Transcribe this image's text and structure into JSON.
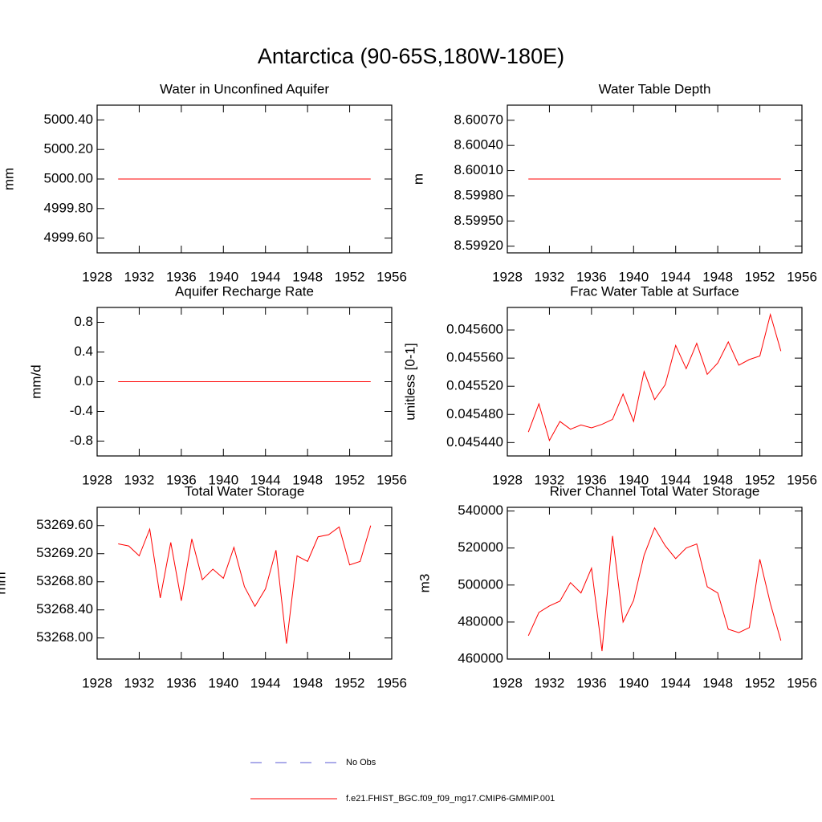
{
  "title": "Antarctica (90-65S,180W-180E)",
  "legend": [
    {
      "name": "No Obs",
      "color": "#5a5ad6",
      "dash": true
    },
    {
      "name": "f.e21.FHIST_BGC.f09_f09_mg17.CMIP6-GMMIP.001",
      "color": "#ff0000",
      "dash": false
    }
  ],
  "chart_data": [
    {
      "type": "line",
      "title": "Water in Unconfined Aquifer",
      "ylabel": "mm",
      "x": [
        1930,
        1931,
        1932,
        1933,
        1934,
        1935,
        1936,
        1937,
        1938,
        1939,
        1940,
        1941,
        1942,
        1943,
        1944,
        1945,
        1946,
        1947,
        1948,
        1949,
        1950,
        1951,
        1952,
        1953,
        1954
      ],
      "series": [
        {
          "color": "#ff0000",
          "values": [
            5000,
            5000,
            5000,
            5000,
            5000,
            5000,
            5000,
            5000,
            5000,
            5000,
            5000,
            5000,
            5000,
            5000,
            5000,
            5000,
            5000,
            5000,
            5000,
            5000,
            5000,
            5000,
            5000,
            5000,
            5000
          ]
        }
      ],
      "xlim": [
        1928,
        1956
      ],
      "xticks": [
        1928,
        1932,
        1936,
        1940,
        1944,
        1948,
        1952,
        1956
      ],
      "ylim": [
        4999.5,
        5000.5
      ],
      "yticks": [
        {
          "value": 4999.6,
          "label": "4999.60"
        },
        {
          "value": 4999.8,
          "label": "4999.80"
        },
        {
          "value": 5000,
          "label": "5000.00"
        },
        {
          "value": 5000.2,
          "label": "5000.20"
        },
        {
          "value": 5000.4,
          "label": "5000.40"
        }
      ]
    },
    {
      "type": "line",
      "title": "Water Table Depth",
      "ylabel": "m",
      "x": [
        1930,
        1931,
        1932,
        1933,
        1934,
        1935,
        1936,
        1937,
        1938,
        1939,
        1940,
        1941,
        1942,
        1943,
        1944,
        1945,
        1946,
        1947,
        1948,
        1949,
        1950,
        1951,
        1952,
        1953,
        1954
      ],
      "series": [
        {
          "color": "#ff0000",
          "values": [
            8.6,
            8.6,
            8.6,
            8.6,
            8.6,
            8.6,
            8.6,
            8.6,
            8.6,
            8.6,
            8.6,
            8.6,
            8.6,
            8.6,
            8.6,
            8.6,
            8.6,
            8.6,
            8.6,
            8.6,
            8.6,
            8.6,
            8.6,
            8.6,
            8.6
          ]
        }
      ],
      "xlim": [
        1928,
        1956
      ],
      "xticks": [
        1928,
        1932,
        1936,
        1940,
        1944,
        1948,
        1952,
        1956
      ],
      "ylim": [
        8.59912,
        8.60088
      ],
      "yticks": [
        {
          "value": 8.5992,
          "label": "8.59920"
        },
        {
          "value": 8.5995,
          "label": "8.59950"
        },
        {
          "value": 8.5998,
          "label": "8.59980"
        },
        {
          "value": 8.6001,
          "label": "8.60010"
        },
        {
          "value": 8.6004,
          "label": "8.60040"
        },
        {
          "value": 8.6007,
          "label": "8.60070"
        }
      ]
    },
    {
      "type": "line",
      "title": "Aquifer Recharge Rate",
      "ylabel": "mm/d",
      "x": [
        1930,
        1931,
        1932,
        1933,
        1934,
        1935,
        1936,
        1937,
        1938,
        1939,
        1940,
        1941,
        1942,
        1943,
        1944,
        1945,
        1946,
        1947,
        1948,
        1949,
        1950,
        1951,
        1952,
        1953,
        1954
      ],
      "series": [
        {
          "color": "#ff0000",
          "values": [
            0,
            0,
            0,
            0,
            0,
            0,
            0,
            0,
            0,
            0,
            0,
            0,
            0,
            0,
            0,
            0,
            0,
            0,
            0,
            0,
            0,
            0,
            0,
            0,
            0
          ]
        }
      ],
      "xlim": [
        1928,
        1956
      ],
      "xticks": [
        1928,
        1932,
        1936,
        1940,
        1944,
        1948,
        1952,
        1956
      ],
      "ylim": [
        -1,
        1
      ],
      "yticks": [
        -0.8,
        -0.4,
        {
          "value": 0,
          "label": "0.0"
        },
        0.4,
        0.8
      ]
    },
    {
      "type": "line",
      "title": "Frac Water Table at Surface",
      "ylabel": "unitless [0-1]",
      "x": [
        1930,
        1931,
        1932,
        1933,
        1934,
        1935,
        1936,
        1937,
        1938,
        1939,
        1940,
        1941,
        1942,
        1943,
        1944,
        1945,
        1946,
        1947,
        1948,
        1949,
        1950,
        1951,
        1952,
        1953,
        1954
      ],
      "series": [
        {
          "color": "#ff0000",
          "values": [
            0.045455,
            0.045495,
            0.045443,
            0.04547,
            0.045459,
            0.045465,
            0.045461,
            0.045466,
            0.045473,
            0.045509,
            0.04547,
            0.045541,
            0.045501,
            0.045522,
            0.045578,
            0.045545,
            0.045581,
            0.045537,
            0.045553,
            0.045583,
            0.04555,
            0.045558,
            0.045563,
            0.045622,
            0.04557
          ]
        }
      ],
      "xlim": [
        1928,
        1956
      ],
      "xticks": [
        1928,
        1932,
        1936,
        1940,
        1944,
        1948,
        1952,
        1956
      ],
      "ylim": [
        0.045421,
        0.045632
      ],
      "yticks": [
        {
          "value": 0.04544,
          "label": "0.045440"
        },
        {
          "value": 0.04548,
          "label": "0.045480"
        },
        {
          "value": 0.04552,
          "label": "0.045520"
        },
        {
          "value": 0.04556,
          "label": "0.045560"
        },
        {
          "value": 0.0456,
          "label": "0.045600"
        }
      ]
    },
    {
      "type": "line",
      "title": "Total Water Storage",
      "ylabel": "mm",
      "x": [
        1930,
        1931,
        1932,
        1933,
        1934,
        1935,
        1936,
        1937,
        1938,
        1939,
        1940,
        1941,
        1942,
        1943,
        1944,
        1945,
        1946,
        1947,
        1948,
        1949,
        1950,
        1951,
        1952,
        1953,
        1954
      ],
      "series": [
        {
          "color": "#ff0000",
          "values": [
            53269.34,
            53269.31,
            53269.17,
            53269.55,
            53268.57,
            53269.36,
            53268.53,
            53269.41,
            53268.83,
            53268.98,
            53268.85,
            53269.29,
            53268.73,
            53268.45,
            53268.7,
            53269.25,
            53267.92,
            53269.17,
            53269.09,
            53269.44,
            53269.47,
            53269.58,
            53269.04,
            53269.09,
            53269.6
          ]
        }
      ],
      "xlim": [
        1928,
        1956
      ],
      "xticks": [
        1928,
        1932,
        1936,
        1940,
        1944,
        1948,
        1952,
        1956
      ],
      "ylim": [
        53267.7,
        53269.86
      ],
      "yticks": [
        {
          "value": 53268,
          "label": "53268.00"
        },
        {
          "value": 53268.4,
          "label": "53268.40"
        },
        {
          "value": 53268.8,
          "label": "53268.80"
        },
        {
          "value": 53269.2,
          "label": "53269.20"
        },
        {
          "value": 53269.6,
          "label": "53269.60"
        }
      ]
    },
    {
      "type": "line",
      "title": "River Channel Total Water Storage",
      "ylabel": "m3",
      "x": [
        1930,
        1931,
        1932,
        1933,
        1934,
        1935,
        1936,
        1937,
        1938,
        1939,
        1940,
        1941,
        1942,
        1943,
        1944,
        1945,
        1946,
        1947,
        1948,
        1949,
        1950,
        1951,
        1952,
        1953,
        1954
      ],
      "series": [
        {
          "color": "#ff0000",
          "values": [
            472600,
            485200,
            488700,
            491300,
            501300,
            495700,
            509100,
            464300,
            526500,
            480000,
            491700,
            516100,
            530900,
            521300,
            514300,
            520000,
            522200,
            499100,
            495700,
            476100,
            474300,
            477000,
            513900,
            490000,
            470000
          ]
        }
      ],
      "xlim": [
        1928,
        1956
      ],
      "xticks": [
        1928,
        1932,
        1936,
        1940,
        1944,
        1948,
        1952,
        1956
      ],
      "ylim": [
        460000,
        542000
      ],
      "yticks": [
        460000,
        480000,
        500000,
        520000,
        540000
      ]
    }
  ]
}
